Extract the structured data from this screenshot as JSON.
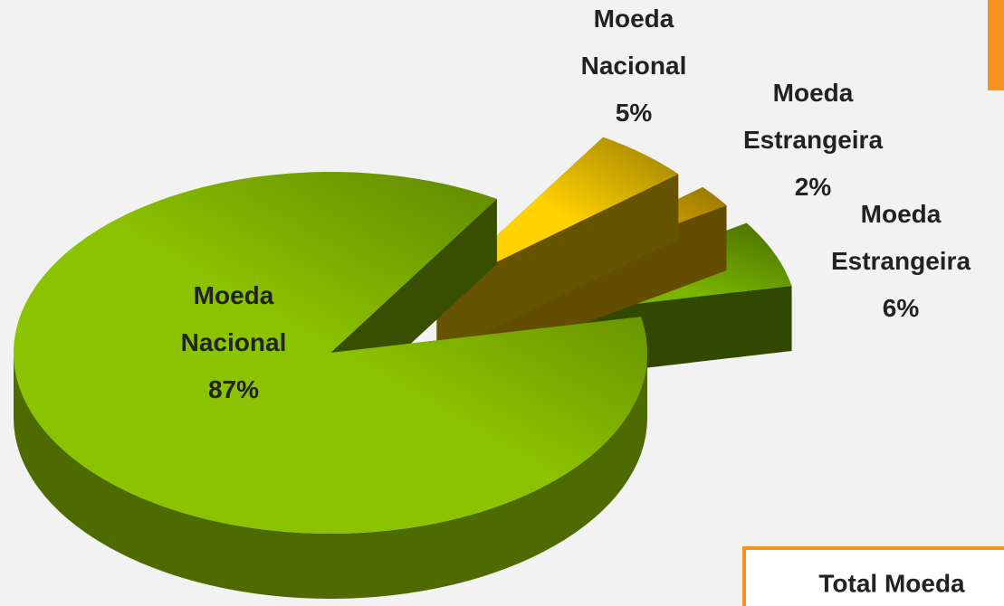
{
  "chart_data": {
    "type": "pie3d",
    "categories": [
      "Moeda Nacional",
      "Moeda Nacional",
      "Moeda Estrangeira",
      "Moeda Estrangeira"
    ],
    "values": [
      87,
      5,
      2,
      6
    ],
    "value_labels": [
      "87%",
      "5%",
      "2%",
      "6%"
    ],
    "colors": [
      "#8cc300",
      "#ffd200",
      "#f5c000",
      "#78b400"
    ],
    "annotation": "Total Moeda"
  }
}
